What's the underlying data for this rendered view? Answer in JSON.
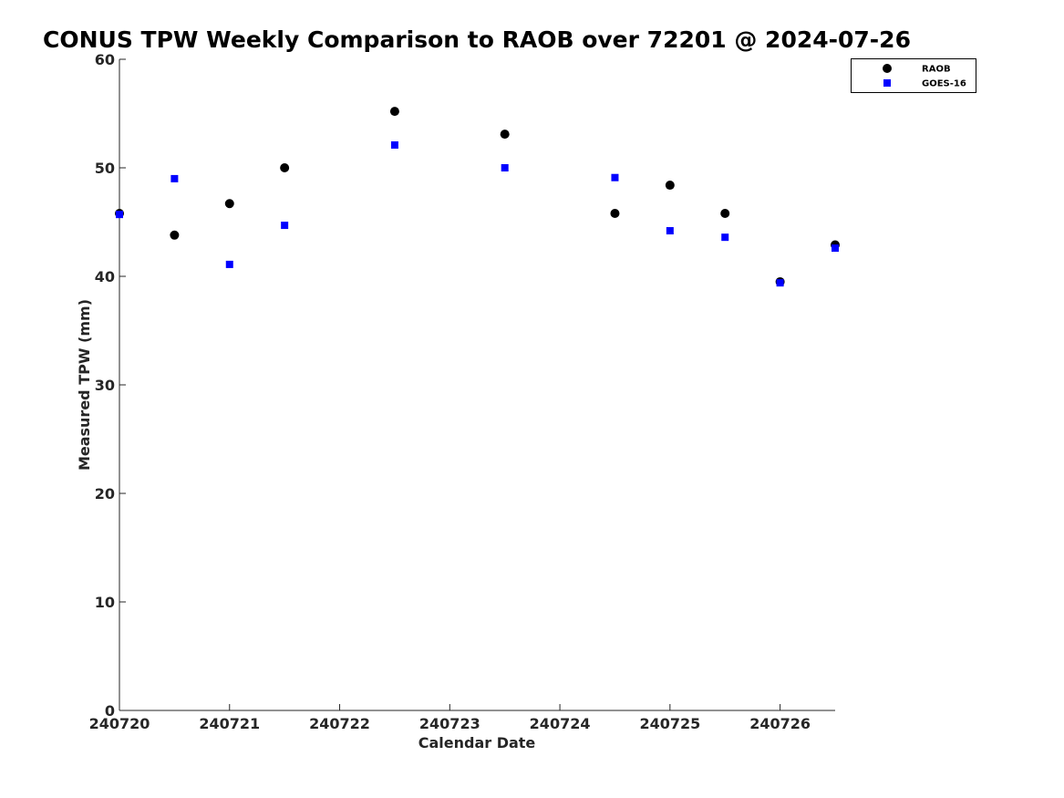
{
  "chart_data": {
    "type": "scatter",
    "title": "CONUS TPW Weekly Comparison to RAOB over 72201 @ 2024-07-26",
    "xlabel": "Calendar Date",
    "ylabel": "Measured TPW (mm)",
    "x_ticks": [
      "240720",
      "240721",
      "240722",
      "240723",
      "240724",
      "240725",
      "240726"
    ],
    "xlim": [
      "2024-07-20 00:00",
      "2024-07-26 12:00"
    ],
    "ylim": [
      0,
      60
    ],
    "y_ticks": [
      0,
      10,
      20,
      30,
      40,
      50,
      60
    ],
    "grid": false,
    "legend_position": "top-right",
    "series": [
      {
        "name": "RAOB",
        "marker": "circle",
        "color": "#000000",
        "points": [
          {
            "x": "2024-07-20 00:00",
            "y": 45.8
          },
          {
            "x": "2024-07-20 12:00",
            "y": 43.8
          },
          {
            "x": "2024-07-21 00:00",
            "y": 46.7
          },
          {
            "x": "2024-07-21 12:00",
            "y": 50.0
          },
          {
            "x": "2024-07-22 12:00",
            "y": 55.2
          },
          {
            "x": "2024-07-23 12:00",
            "y": 53.1
          },
          {
            "x": "2024-07-24 12:00",
            "y": 45.8
          },
          {
            "x": "2024-07-25 00:00",
            "y": 48.4
          },
          {
            "x": "2024-07-25 12:00",
            "y": 45.8
          },
          {
            "x": "2024-07-26 00:00",
            "y": 39.5
          },
          {
            "x": "2024-07-26 12:00",
            "y": 42.9
          }
        ]
      },
      {
        "name": "GOES-16",
        "marker": "square",
        "color": "#0000ff",
        "points": [
          {
            "x": "2024-07-20 00:00",
            "y": 45.7
          },
          {
            "x": "2024-07-20 12:00",
            "y": 49.0
          },
          {
            "x": "2024-07-21 00:00",
            "y": 41.1
          },
          {
            "x": "2024-07-21 12:00",
            "y": 44.7
          },
          {
            "x": "2024-07-22 12:00",
            "y": 52.1
          },
          {
            "x": "2024-07-23 12:00",
            "y": 50.0
          },
          {
            "x": "2024-07-24 12:00",
            "y": 49.1
          },
          {
            "x": "2024-07-25 00:00",
            "y": 44.2
          },
          {
            "x": "2024-07-25 12:00",
            "y": 43.6
          },
          {
            "x": "2024-07-26 00:00",
            "y": 39.4
          },
          {
            "x": "2024-07-26 12:00",
            "y": 42.6
          }
        ]
      }
    ]
  }
}
